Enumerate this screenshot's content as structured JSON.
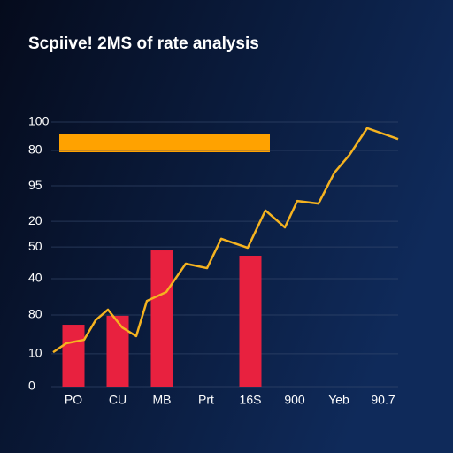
{
  "chart_data": {
    "type": "bar",
    "title": "Scpiive! 2MS of rate analysis",
    "categories": [
      "PO",
      "CU",
      "MB",
      "Prt",
      "16S",
      "900",
      "Yeb",
      "90.7"
    ],
    "xlim": [
      0,
      8
    ],
    "ylim": [
      0,
      100
    ],
    "yticks": [
      0,
      {
        "value": 12.4,
        "label": "10"
      },
      {
        "value": 27.1,
        "label": "80"
      },
      {
        "value": 40.8,
        "label": "40"
      },
      {
        "value": 52.8,
        "label": "50"
      },
      {
        "value": 62.5,
        "label": "20"
      },
      {
        "value": 75.9,
        "label": "95"
      },
      {
        "value": 89.3,
        "label": "80"
      },
      100
    ],
    "grid": true,
    "series": [
      {
        "type": "bar",
        "color": "#e8213f",
        "values": [
          23.4,
          26.8,
          51.5,
          null,
          49.5,
          null,
          null,
          null
        ]
      },
      {
        "type": "line",
        "color": "#f5b320",
        "x": [
          0.04,
          0.34,
          0.74,
          1.0,
          1.28,
          1.6,
          1.92,
          2.16,
          2.6,
          3.04,
          3.52,
          3.84,
          4.44,
          4.84,
          5.28,
          5.56,
          6.04,
          6.4,
          6.74,
          7.14,
          7.84
        ],
        "values": [
          13.0,
          16.4,
          17.7,
          25.1,
          29.1,
          22.4,
          19.1,
          32.4,
          35.8,
          46.5,
          44.8,
          55.9,
          52.5,
          66.6,
          60.2,
          70.2,
          69.2,
          80.9,
          87.6,
          97.7,
          93.6
        ]
      }
    ]
  }
}
